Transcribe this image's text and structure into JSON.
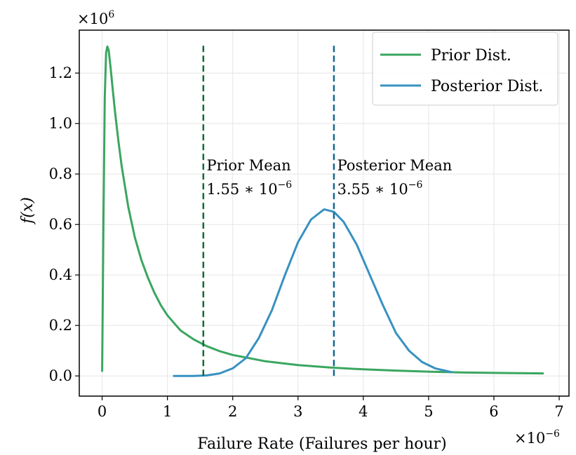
{
  "chart_data": {
    "type": "line",
    "xlabel": "Failure Rate (Failures per hour)",
    "ylabel": "f(x)",
    "x_multiplier": "×10",
    "x_multiplier_exp": "−6",
    "y_multiplier": "×10",
    "y_multiplier_exp": "6",
    "xlim": [
      -0.35,
      7.15
    ],
    "ylim": [
      -0.08,
      1.37
    ],
    "grid": true,
    "legend_position": "top-right",
    "x_ticks": [
      "0",
      "1",
      "2",
      "3",
      "4",
      "5",
      "6",
      "7"
    ],
    "x_tick_values": [
      0,
      1,
      2,
      3,
      4,
      5,
      6,
      7
    ],
    "y_ticks": [
      "0.0",
      "0.2",
      "0.4",
      "0.6",
      "0.8",
      "1.0",
      "1.2"
    ],
    "y_tick_values": [
      0,
      0.2,
      0.4,
      0.6,
      0.8,
      1.0,
      1.2
    ],
    "series": [
      {
        "name": "Prior Dist.",
        "color": "#3aa65f",
        "x": [
          0.0,
          0.02,
          0.04,
          0.06,
          0.08,
          0.1,
          0.13,
          0.16,
          0.2,
          0.25,
          0.3,
          0.4,
          0.5,
          0.6,
          0.7,
          0.8,
          0.9,
          1.0,
          1.2,
          1.4,
          1.6,
          1.8,
          2.0,
          2.5,
          3.0,
          3.5,
          4.0,
          4.5,
          5.0,
          5.5,
          6.0,
          6.5,
          6.75
        ],
        "y": [
          0.02,
          0.6,
          1.1,
          1.28,
          1.305,
          1.29,
          1.22,
          1.14,
          1.04,
          0.93,
          0.83,
          0.67,
          0.55,
          0.46,
          0.39,
          0.33,
          0.28,
          0.24,
          0.18,
          0.145,
          0.118,
          0.098,
          0.083,
          0.058,
          0.043,
          0.033,
          0.026,
          0.021,
          0.017,
          0.014,
          0.012,
          0.0105,
          0.01
        ]
      },
      {
        "name": "Posterior Dist.",
        "color": "#3791c1",
        "x": [
          1.1,
          1.4,
          1.6,
          1.8,
          2.0,
          2.2,
          2.4,
          2.6,
          2.8,
          3.0,
          3.2,
          3.4,
          3.55,
          3.7,
          3.9,
          4.1,
          4.3,
          4.5,
          4.7,
          4.9,
          5.1,
          5.35
        ],
        "y": [
          0.0,
          0.0,
          0.002,
          0.01,
          0.03,
          0.07,
          0.15,
          0.26,
          0.4,
          0.53,
          0.62,
          0.66,
          0.65,
          0.61,
          0.52,
          0.4,
          0.28,
          0.17,
          0.1,
          0.055,
          0.03,
          0.015
        ]
      }
    ],
    "vlines": [
      {
        "x": 1.55,
        "color": "#0f6b3a",
        "ymax": 1.31
      },
      {
        "x": 3.55,
        "color": "#15668f",
        "ymax": 1.31
      }
    ],
    "annotations": [
      {
        "x": 1.6,
        "y": 0.82,
        "line1": "Prior Mean",
        "base": "1.55 ∗ 10",
        "exp": "−6"
      },
      {
        "x": 3.6,
        "y": 0.82,
        "line1": "Posterior Mean",
        "base": "3.55 ∗ 10",
        "exp": "−6"
      }
    ]
  }
}
